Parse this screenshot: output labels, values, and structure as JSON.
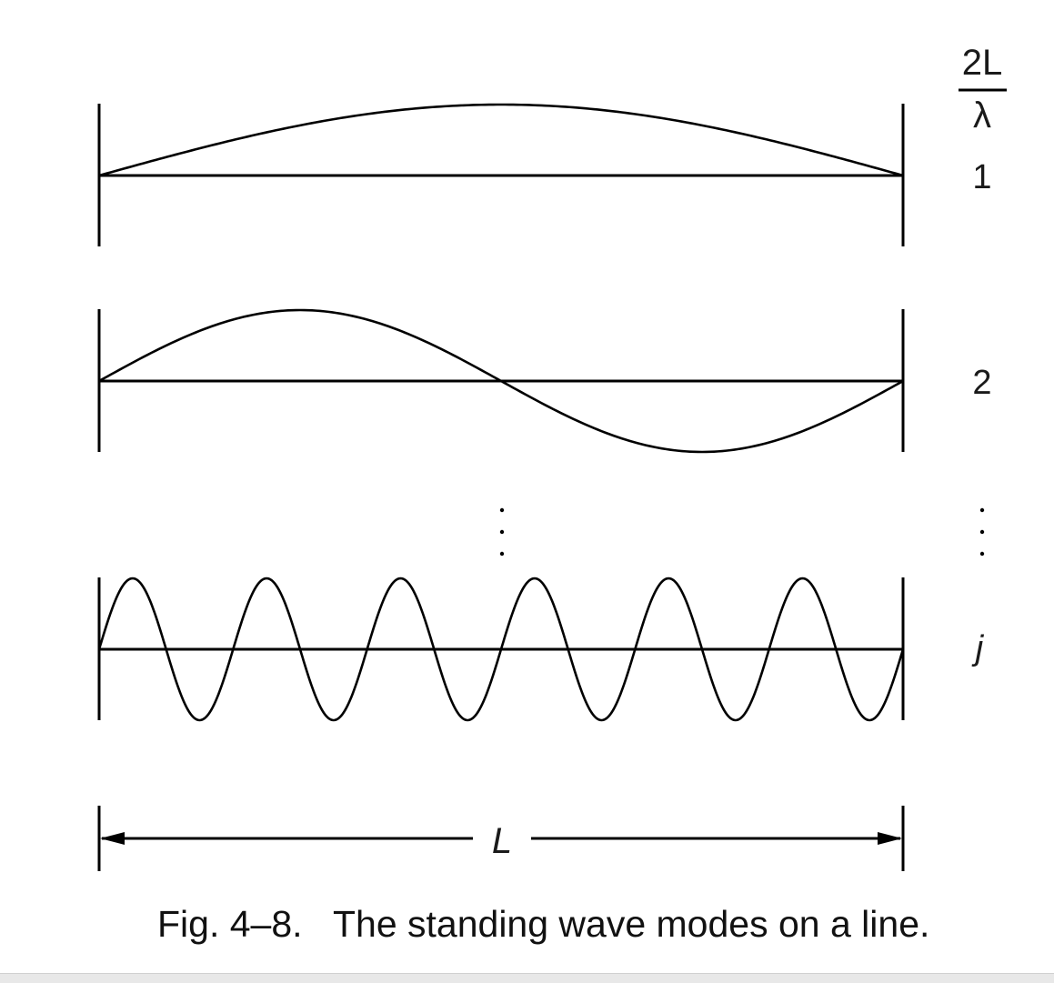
{
  "header": {
    "numerator": "2L",
    "denominator": "λ"
  },
  "modes": [
    {
      "label": "1",
      "half_wavelengths": 1
    },
    {
      "label": "2",
      "half_wavelengths": 2
    },
    {
      "label": "j",
      "half_wavelengths": 12
    }
  ],
  "dimension": {
    "label": "L"
  },
  "caption": {
    "number": "Fig. 4–8.",
    "text": "The standing wave modes on a line."
  }
}
